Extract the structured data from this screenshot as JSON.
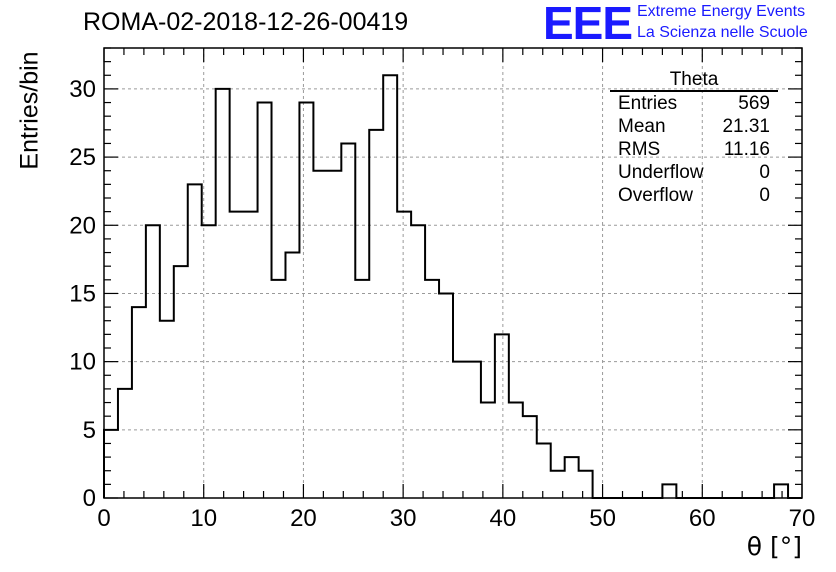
{
  "title": "ROMA-02-2018-12-26-00419",
  "logo": {
    "mark": "EEE",
    "line1": "Extreme Energy Events",
    "line2": "La Scienza nelle Scuole",
    "color": "#1a1aff"
  },
  "stats": {
    "title": "Theta",
    "rows": [
      {
        "label": "Entries",
        "value": "569"
      },
      {
        "label": "Mean",
        "value": "21.31"
      },
      {
        "label": "RMS",
        "value": "11.16"
      },
      {
        "label": "Underflow",
        "value": "0"
      },
      {
        "label": "Overflow",
        "value": "0"
      }
    ]
  },
  "chart_data": {
    "type": "histogram",
    "title": "ROMA-02-2018-12-26-00419",
    "xlabel": "θ [°]",
    "ylabel": "Entries/bin",
    "xlim": [
      0,
      70
    ],
    "ylim": [
      0,
      33
    ],
    "xticks": [
      0,
      10,
      20,
      30,
      40,
      50,
      60,
      70
    ],
    "yticks": [
      0,
      5,
      10,
      15,
      20,
      25,
      30
    ],
    "grid": true,
    "bin_width": 1.4,
    "bin_edges_start": 0,
    "values": [
      5,
      8,
      14,
      20,
      13,
      17,
      23,
      20,
      30,
      21,
      21,
      29,
      16,
      18,
      29,
      24,
      24,
      26,
      16,
      27,
      31,
      21,
      20,
      16,
      15,
      10,
      10,
      7,
      12,
      7,
      6,
      4,
      2,
      3,
      2,
      0,
      0,
      0,
      0,
      0,
      1,
      0,
      0,
      0,
      0,
      0,
      0,
      0,
      1,
      0
    ],
    "color": "#000000"
  }
}
